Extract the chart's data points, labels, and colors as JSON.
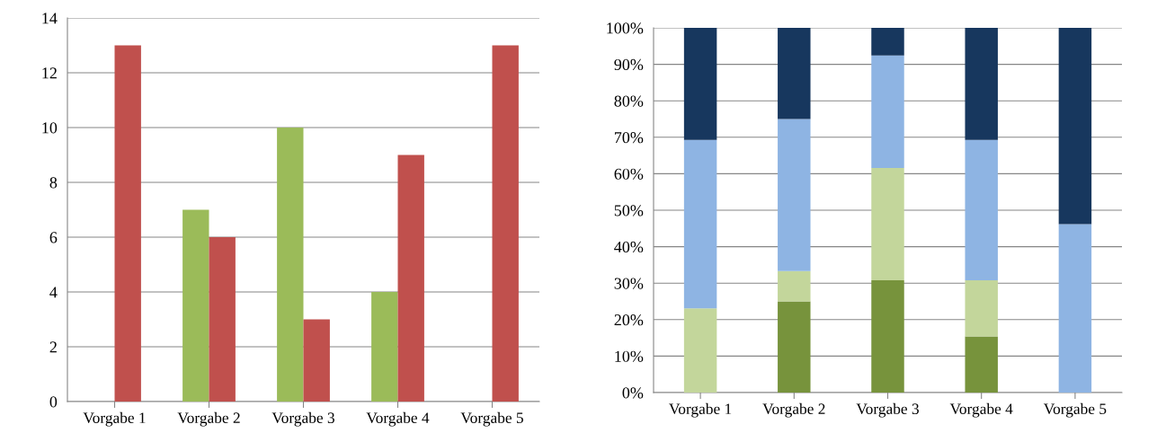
{
  "chart_data": [
    {
      "type": "bar",
      "categories": [
        "Vorgabe 1",
        "Vorgabe 2",
        "Vorgabe 3",
        "Vorgabe 4",
        "Vorgabe 5"
      ],
      "series": [
        {
          "color": "#9bbb59",
          "values": [
            0,
            7,
            10,
            4,
            0
          ]
        },
        {
          "color": "#c0504d",
          "values": [
            13,
            6,
            3,
            9,
            13
          ]
        }
      ],
      "ylim": [
        0,
        14
      ],
      "yticks": [
        0,
        2,
        4,
        6,
        8,
        10,
        12,
        14
      ],
      "grid": "y"
    },
    {
      "type": "bar",
      "stacked": true,
      "categories": [
        "Vorgabe 1",
        "Vorgabe 2",
        "Vorgabe 3",
        "Vorgabe 4",
        "Vorgabe 5"
      ],
      "series": [
        {
          "color": "#77933c",
          "values": [
            0,
            25,
            30.8,
            15.4,
            0
          ]
        },
        {
          "color": "#c3d69b",
          "values": [
            23.1,
            8.3,
            30.8,
            15.4,
            0
          ]
        },
        {
          "color": "#8eb4e3",
          "values": [
            46.2,
            41.7,
            30.8,
            38.5,
            46.2
          ]
        },
        {
          "color": "#17375e",
          "values": [
            30.8,
            25,
            7.7,
            30.8,
            53.8
          ]
        }
      ],
      "ylim": [
        0,
        100
      ],
      "yticks": [
        {
          "value": 0,
          "label": "0%"
        },
        {
          "value": 10,
          "label": "10%"
        },
        {
          "value": 20,
          "label": "20%"
        },
        {
          "value": 30,
          "label": "30%"
        },
        {
          "value": 40,
          "label": "40%"
        },
        {
          "value": 50,
          "label": "50%"
        },
        {
          "value": 60,
          "label": "60%"
        },
        {
          "value": 70,
          "label": "70%"
        },
        {
          "value": 80,
          "label": "80%"
        },
        {
          "value": 90,
          "label": "90%"
        },
        {
          "value": 100,
          "label": "100%"
        }
      ],
      "grid": "y"
    }
  ]
}
